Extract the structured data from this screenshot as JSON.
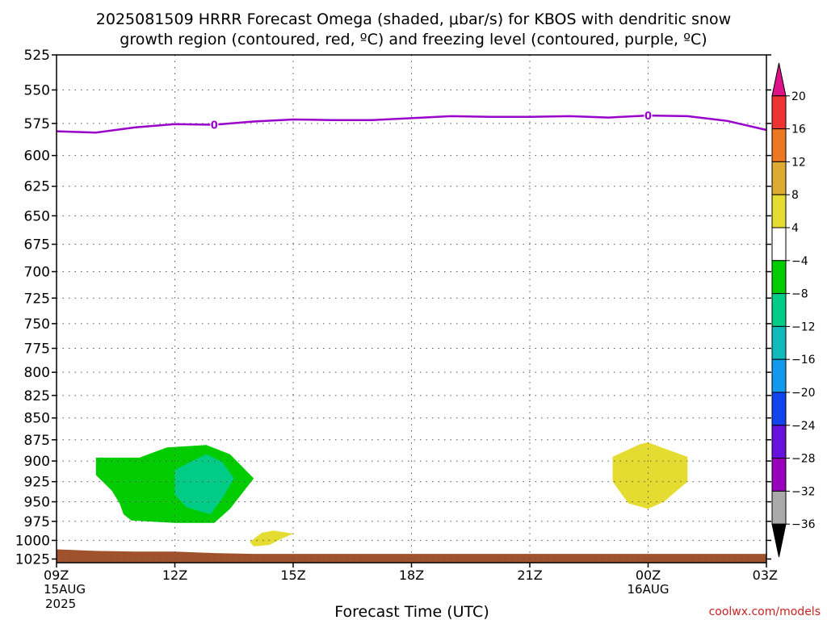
{
  "chart_data": {
    "type": "heatmap",
    "title_line1": "2025081509 HRRR Forecast Omega (shaded, μbar/s) for KBOS with dendritic snow",
    "title_line2": "growth region (contoured, red, ºC) and freezing level (contoured, purple, ºC)",
    "xlabel": "Forecast Time (UTC)",
    "ylabel": "",
    "credit": "coolwx.com/models",
    "xlim": [
      0,
      18
    ],
    "ylim": [
      1030,
      525
    ],
    "y_scale": "log",
    "y_ticks": [
      525,
      550,
      575,
      600,
      625,
      650,
      675,
      700,
      725,
      750,
      775,
      800,
      825,
      850,
      875,
      900,
      925,
      950,
      975,
      1000,
      1025
    ],
    "x_ticks": [
      {
        "x": 0,
        "label": "09Z",
        "sub1": "15AUG",
        "sub2": "2025"
      },
      {
        "x": 3,
        "label": "12Z",
        "sub1": "",
        "sub2": ""
      },
      {
        "x": 6,
        "label": "15Z",
        "sub1": "",
        "sub2": ""
      },
      {
        "x": 9,
        "label": "18Z",
        "sub1": "",
        "sub2": ""
      },
      {
        "x": 12,
        "label": "21Z",
        "sub1": "",
        "sub2": ""
      },
      {
        "x": 15,
        "label": "00Z",
        "sub1": "16AUG",
        "sub2": ""
      },
      {
        "x": 18,
        "label": "03Z",
        "sub1": "",
        "sub2": ""
      }
    ],
    "grid": true,
    "freezing_level": {
      "color": "#9900cc",
      "label": "0",
      "label_points": [
        {
          "x": 4,
          "y": 576
        },
        {
          "x": 15,
          "y": 569
        }
      ],
      "points": [
        [
          0,
          581
        ],
        [
          1,
          582
        ],
        [
          2,
          578
        ],
        [
          3,
          575.5
        ],
        [
          4,
          576
        ],
        [
          5,
          573.5
        ],
        [
          6,
          572
        ],
        [
          7,
          572.5
        ],
        [
          8,
          572.5
        ],
        [
          9,
          571
        ],
        [
          10,
          569.5
        ],
        [
          11,
          570
        ],
        [
          12,
          570
        ],
        [
          13,
          569.5
        ],
        [
          14,
          570.5
        ],
        [
          15,
          569
        ],
        [
          16,
          569.5
        ],
        [
          17,
          573
        ],
        [
          18,
          580
        ]
      ]
    },
    "omega_regions": [
      {
        "value_range": [
          -8,
          -4
        ],
        "color": "#00cc00",
        "points": [
          [
            1,
            896
          ],
          [
            2.1,
            896
          ],
          [
            2.8,
            884
          ],
          [
            3.8,
            881
          ],
          [
            4.4,
            892
          ],
          [
            5,
            921
          ],
          [
            4.4,
            959
          ],
          [
            4,
            977
          ],
          [
            3,
            977
          ],
          [
            1.9,
            974
          ],
          [
            1.7,
            966
          ],
          [
            1.6,
            952
          ],
          [
            1.4,
            936
          ],
          [
            1,
            917
          ]
        ]
      },
      {
        "value_range": [
          -12,
          -8
        ],
        "color": "#00cc88",
        "points": [
          [
            3,
            911
          ],
          [
            3.4,
            901
          ],
          [
            3.8,
            892
          ],
          [
            4.2,
            901
          ],
          [
            4.5,
            921
          ],
          [
            4.2,
            946
          ],
          [
            3.9,
            966
          ],
          [
            3.3,
            957
          ],
          [
            3,
            941
          ]
        ]
      },
      {
        "value_range": [
          4,
          8
        ],
        "color": "#e5dc32",
        "points": [
          [
            14.1,
            895
          ],
          [
            14.8,
            880
          ],
          [
            15,
            878
          ],
          [
            15.4,
            885
          ],
          [
            16,
            895
          ],
          [
            16,
            925
          ],
          [
            15.4,
            950
          ],
          [
            15,
            959
          ],
          [
            14.5,
            952
          ],
          [
            14.1,
            925
          ]
        ]
      },
      {
        "value_range": [
          4,
          8
        ],
        "color": "#e5dc32",
        "points": [
          [
            4.9,
            1002
          ],
          [
            5.2,
            990
          ],
          [
            5.5,
            987
          ],
          [
            6,
            991
          ],
          [
            5.7,
            998
          ],
          [
            5.4,
            1006
          ],
          [
            5,
            1008
          ]
        ]
      }
    ],
    "surface": {
      "color": "#a0522d",
      "points": [
        [
          0,
          1012
        ],
        [
          1,
          1014
        ],
        [
          2,
          1015
        ],
        [
          3,
          1015
        ],
        [
          4,
          1017
        ],
        [
          5,
          1018
        ],
        [
          18,
          1018
        ]
      ]
    },
    "colorbar": {
      "labels": [
        "20",
        "16",
        "12",
        "8",
        "4",
        "-4",
        "-8",
        "-12",
        "-16",
        "-20",
        "-24",
        "-28",
        "-32",
        "-36"
      ],
      "colors": [
        "#dd1188",
        "#ee3333",
        "#ee7722",
        "#ddaa33",
        "#e5dc32",
        "#ffffff",
        "#00cc00",
        "#00cc88",
        "#11bbbb",
        "#1199ee",
        "#1144ee",
        "#6611dd",
        "#9900bb",
        "#aaaaaa",
        "#000000"
      ]
    }
  }
}
